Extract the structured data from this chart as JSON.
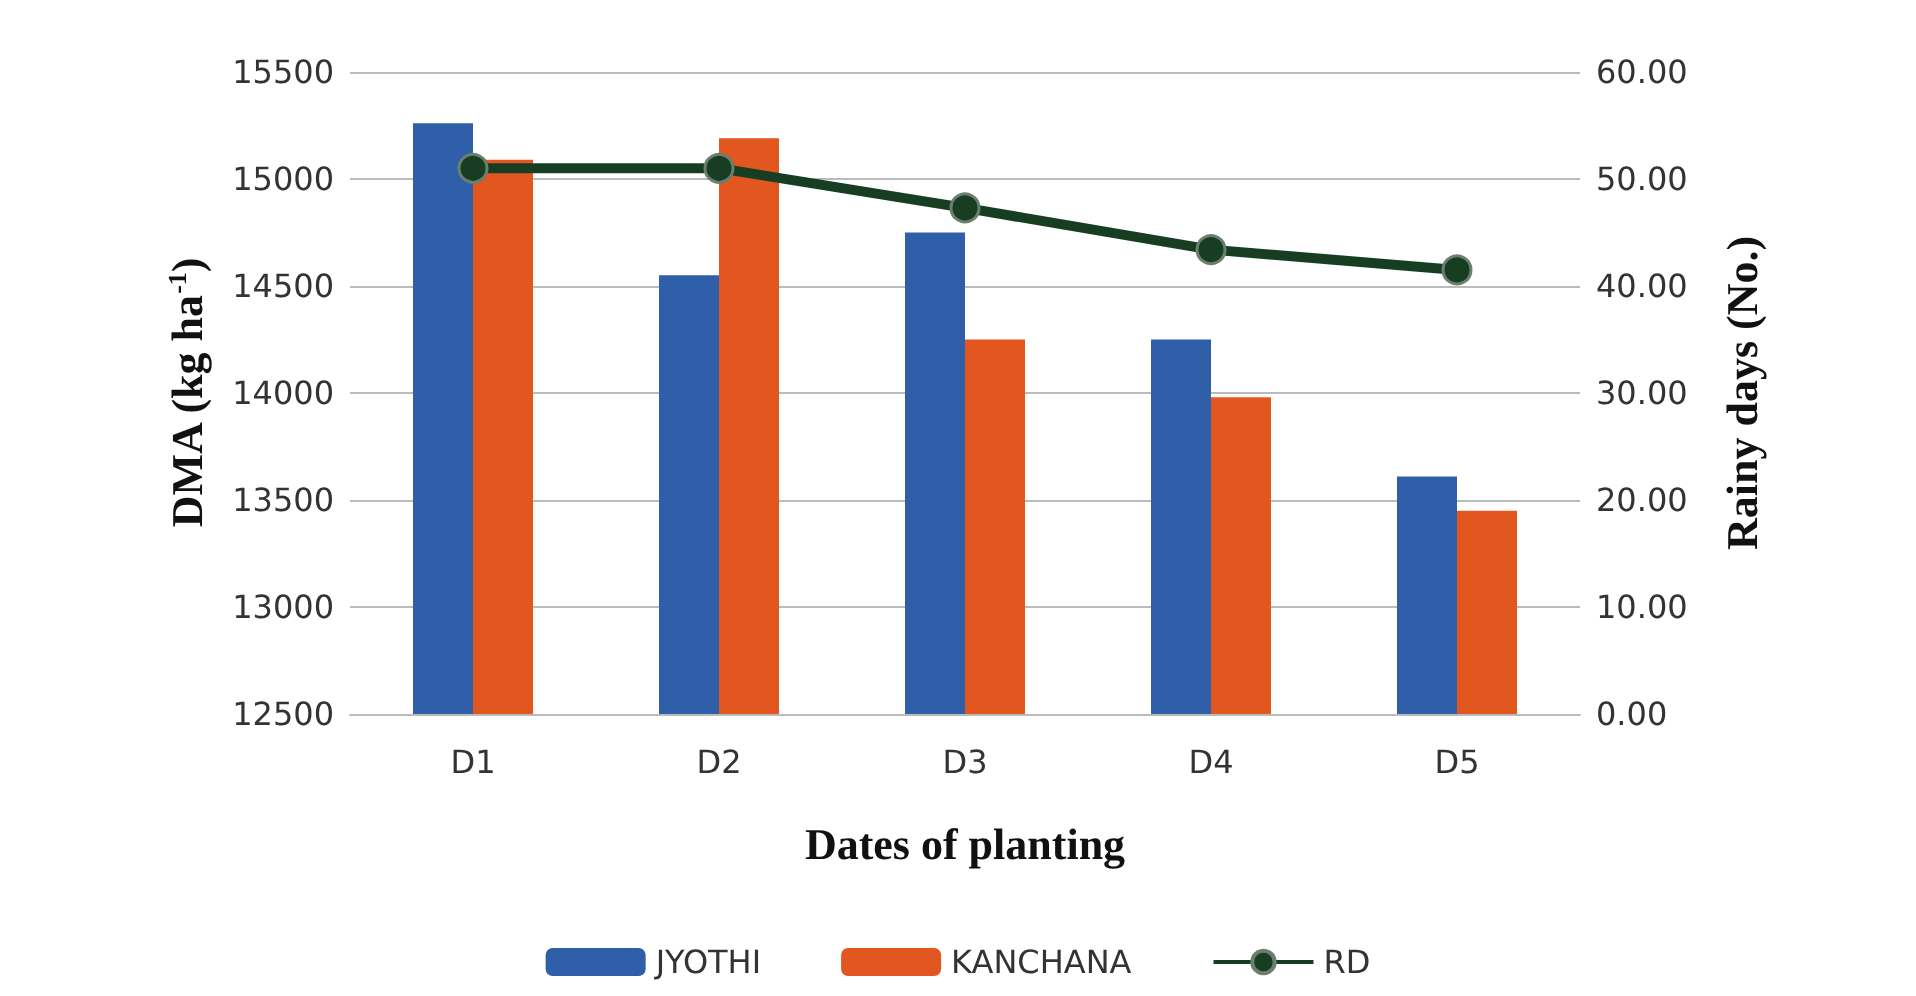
{
  "chart_data": {
    "type": "bar",
    "xlabel": "Dates of planting",
    "ylabel": "DMA (kg ha$^{-1}$)",
    "y2label": "Rainy days (No.)",
    "categories": [
      "D1",
      "D2",
      "D3",
      "D4",
      "D5"
    ],
    "series": [
      {
        "name": "JYOTHI",
        "color": "#2e5fa8",
        "values": [
          15260,
          14550,
          14750,
          14250,
          13610
        ]
      },
      {
        "name": "KANCHANA",
        "color": "#e2561f",
        "values": [
          15090,
          15190,
          14250,
          13980,
          13450
        ]
      },
      {
        "name": "RD",
        "type": "line",
        "axis": "y2",
        "color": "#173d22",
        "marker": "circle",
        "values": [
          51.0,
          51.0,
          47.3,
          43.4,
          41.5
        ]
      }
    ],
    "ylim": [
      12500,
      15500
    ],
    "yticks": [
      12500,
      13000,
      13500,
      14000,
      14500,
      15000,
      15500
    ],
    "y2lim": [
      0,
      60
    ],
    "y2ticks": [
      {
        "value": 0,
        "label": "0.00"
      },
      {
        "value": 10,
        "label": "10.00"
      },
      {
        "value": 20,
        "label": "20.00"
      },
      {
        "value": 30,
        "label": "30.00"
      },
      {
        "value": 40,
        "label": "40.00"
      },
      {
        "value": 50,
        "label": "50.00"
      },
      {
        "value": 60,
        "label": "60.00"
      }
    ],
    "grid": "y",
    "legend": "bottom"
  }
}
